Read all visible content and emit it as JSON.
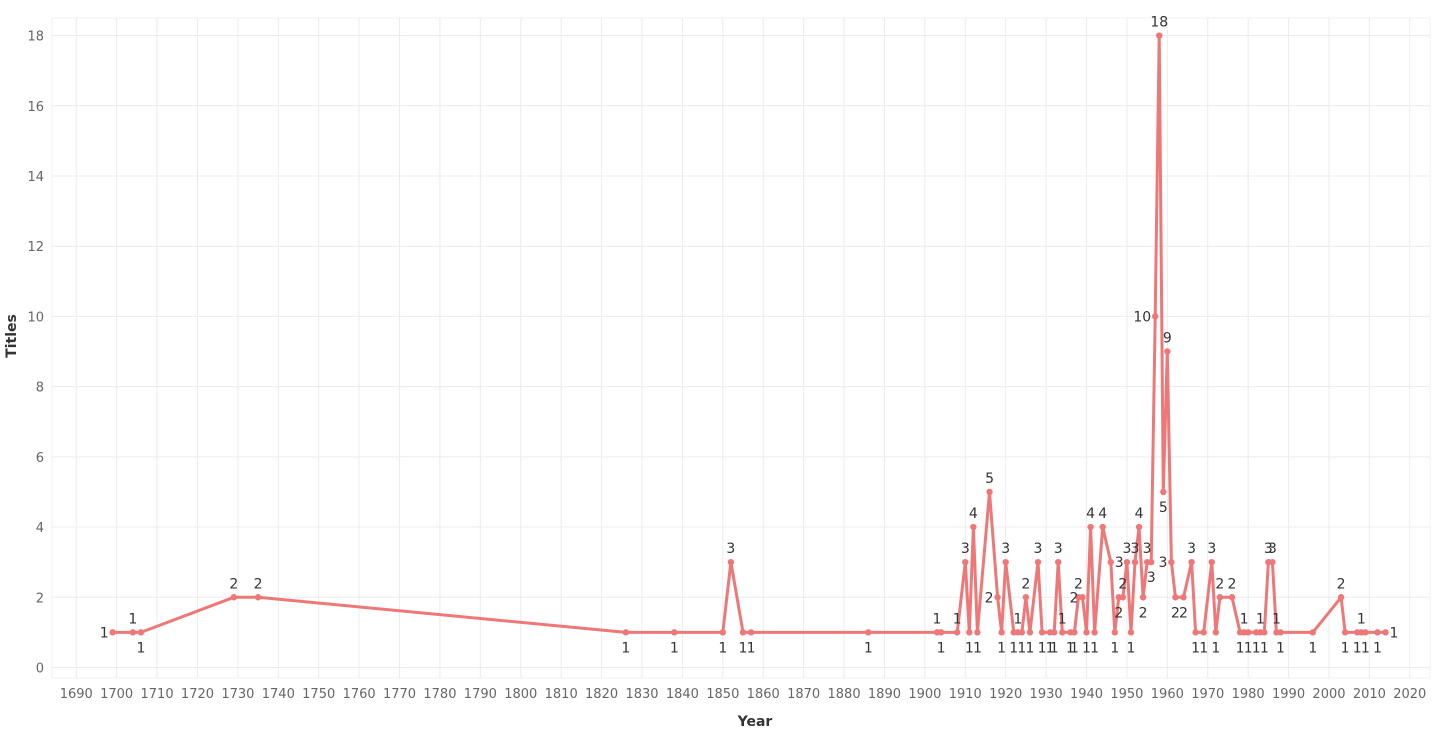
{
  "colors": {
    "series": "#ee7878",
    "grid": "#ececec",
    "tick": "#666666"
  },
  "chart_data": {
    "type": "line",
    "title": "",
    "xlabel": "Year",
    "ylabel": "Titles",
    "xlim": [
      1684,
      2025
    ],
    "ylim": [
      -0.3,
      18.5
    ],
    "x_ticks": [
      1690,
      1700,
      1710,
      1720,
      1730,
      1740,
      1750,
      1760,
      1770,
      1780,
      1790,
      1800,
      1810,
      1820,
      1830,
      1840,
      1850,
      1860,
      1870,
      1880,
      1890,
      1900,
      1910,
      1920,
      1930,
      1940,
      1950,
      1960,
      1970,
      1980,
      1990,
      2000,
      2010,
      2020
    ],
    "y_ticks": [
      0,
      2,
      4,
      6,
      8,
      10,
      12,
      14,
      16,
      18
    ],
    "grid": true,
    "legend": "none",
    "series": [
      {
        "points": [
          [
            1699,
            1
          ],
          [
            1704,
            1
          ],
          [
            1706,
            1
          ],
          [
            1729,
            2
          ],
          [
            1735,
            2
          ],
          [
            1826,
            1
          ],
          [
            1838,
            1
          ],
          [
            1850,
            1
          ],
          [
            1852,
            3
          ],
          [
            1855,
            1
          ],
          [
            1857,
            1
          ],
          [
            1886,
            1
          ],
          [
            1903,
            1
          ],
          [
            1904,
            1
          ],
          [
            1908,
            1
          ],
          [
            1910,
            3
          ],
          [
            1911,
            1
          ],
          [
            1912,
            4
          ],
          [
            1913,
            1
          ],
          [
            1916,
            5
          ],
          [
            1918,
            2
          ],
          [
            1919,
            1
          ],
          [
            1920,
            3
          ],
          [
            1922,
            1
          ],
          [
            1923,
            1
          ],
          [
            1924,
            1
          ],
          [
            1925,
            2
          ],
          [
            1926,
            1
          ],
          [
            1928,
            3
          ],
          [
            1929,
            1
          ],
          [
            1931,
            1
          ],
          [
            1932,
            1
          ],
          [
            1933,
            3
          ],
          [
            1934,
            1
          ],
          [
            1936,
            1
          ],
          [
            1937,
            1
          ],
          [
            1938,
            2
          ],
          [
            1939,
            2
          ],
          [
            1940,
            1
          ],
          [
            1941,
            4
          ],
          [
            1942,
            1
          ],
          [
            1944,
            4
          ],
          [
            1946,
            3
          ],
          [
            1947,
            1
          ],
          [
            1948,
            2
          ],
          [
            1949,
            2
          ],
          [
            1950,
            3
          ],
          [
            1951,
            1
          ],
          [
            1952,
            3
          ],
          [
            1953,
            4
          ],
          [
            1954,
            2
          ],
          [
            1955,
            3
          ],
          [
            1956,
            3
          ],
          [
            1957,
            10
          ],
          [
            1958,
            18
          ],
          [
            1959,
            5
          ],
          [
            1960,
            9
          ],
          [
            1961,
            3
          ],
          [
            1962,
            2
          ],
          [
            1964,
            2
          ],
          [
            1966,
            3
          ],
          [
            1967,
            1
          ],
          [
            1969,
            1
          ],
          [
            1971,
            3
          ],
          [
            1972,
            1
          ],
          [
            1973,
            2
          ],
          [
            1976,
            2
          ],
          [
            1978,
            1
          ],
          [
            1979,
            1
          ],
          [
            1980,
            1
          ],
          [
            1982,
            1
          ],
          [
            1983,
            1
          ],
          [
            1984,
            1
          ],
          [
            1985,
            3
          ],
          [
            1986,
            3
          ],
          [
            1987,
            1
          ],
          [
            1988,
            1
          ],
          [
            1996,
            1
          ],
          [
            2003,
            2
          ],
          [
            2004,
            1
          ],
          [
            2007,
            1
          ],
          [
            2008,
            1
          ],
          [
            2009,
            1
          ],
          [
            2012,
            1
          ],
          [
            2014,
            1
          ]
        ],
        "labels": [
          [
            "1",
            "left"
          ],
          [
            "1",
            "above"
          ],
          [
            "1",
            "below"
          ],
          [
            "2",
            "above"
          ],
          [
            "2",
            "above"
          ],
          [
            "1",
            "below"
          ],
          [
            "1",
            "below"
          ],
          [
            "1",
            "below"
          ],
          [
            "3",
            "above"
          ],
          [
            "1",
            "below"
          ],
          [
            "1",
            "below"
          ],
          [
            "1",
            "below"
          ],
          [
            "1",
            "above"
          ],
          [
            "1",
            "below"
          ],
          [
            "1",
            "above"
          ],
          [
            "3",
            "above"
          ],
          [
            "1",
            "below"
          ],
          [
            "4",
            "above"
          ],
          [
            "1",
            "below"
          ],
          [
            "5",
            "above"
          ],
          [
            "2",
            "left"
          ],
          [
            "1",
            "below"
          ],
          [
            "3",
            "above"
          ],
          [
            "1",
            "below"
          ],
          [
            "1",
            "above"
          ],
          [
            "1",
            "below"
          ],
          [
            "2",
            "above"
          ],
          [
            "1",
            "below"
          ],
          [
            "3",
            "above"
          ],
          [
            "1",
            "below"
          ],
          [
            "1",
            "below"
          ],
          [
            "1",
            "below"
          ],
          [
            "3",
            "above"
          ],
          [
            "1",
            "above"
          ],
          [
            "1",
            "below"
          ],
          [
            "1",
            "below"
          ],
          [
            "2",
            "above"
          ],
          [
            "2",
            "left"
          ],
          [
            "1",
            "below"
          ],
          [
            "4",
            "above"
          ],
          [
            "1",
            "below"
          ],
          [
            "4",
            "above"
          ],
          [
            "3",
            "right"
          ],
          [
            "1",
            "below"
          ],
          [
            "2",
            "below"
          ],
          [
            "2",
            "above"
          ],
          [
            "3",
            "above"
          ],
          [
            "1",
            "below"
          ],
          [
            "3",
            "above"
          ],
          [
            "4",
            "above"
          ],
          [
            "2",
            "below"
          ],
          [
            "3",
            "above"
          ],
          [
            "3",
            "below"
          ],
          [
            "10",
            "left"
          ],
          [
            "18",
            "above"
          ],
          [
            "5",
            "below"
          ],
          [
            "9",
            "above"
          ],
          [
            "3",
            "left"
          ],
          [
            "2",
            "below"
          ],
          [
            "2",
            "below"
          ],
          [
            "3",
            "above"
          ],
          [
            "1",
            "below"
          ],
          [
            "1",
            "below"
          ],
          [
            "3",
            "above"
          ],
          [
            "1",
            "below"
          ],
          [
            "2",
            "above"
          ],
          [
            "2",
            "above"
          ],
          [
            "1",
            "below"
          ],
          [
            "1",
            "above"
          ],
          [
            "1",
            "below"
          ],
          [
            "1",
            "below"
          ],
          [
            "1",
            "above"
          ],
          [
            "1",
            "below"
          ],
          [
            "3",
            "above"
          ],
          [
            "3",
            "above"
          ],
          [
            "1",
            "above"
          ],
          [
            "1",
            "below"
          ],
          [
            "1",
            "below"
          ],
          [
            "2",
            "above"
          ],
          [
            "1",
            "below"
          ],
          [
            "1",
            "below"
          ],
          [
            "1",
            "above"
          ],
          [
            "1",
            "below"
          ],
          [
            "1",
            "below"
          ],
          [
            "1",
            "right"
          ]
        ]
      }
    ]
  }
}
